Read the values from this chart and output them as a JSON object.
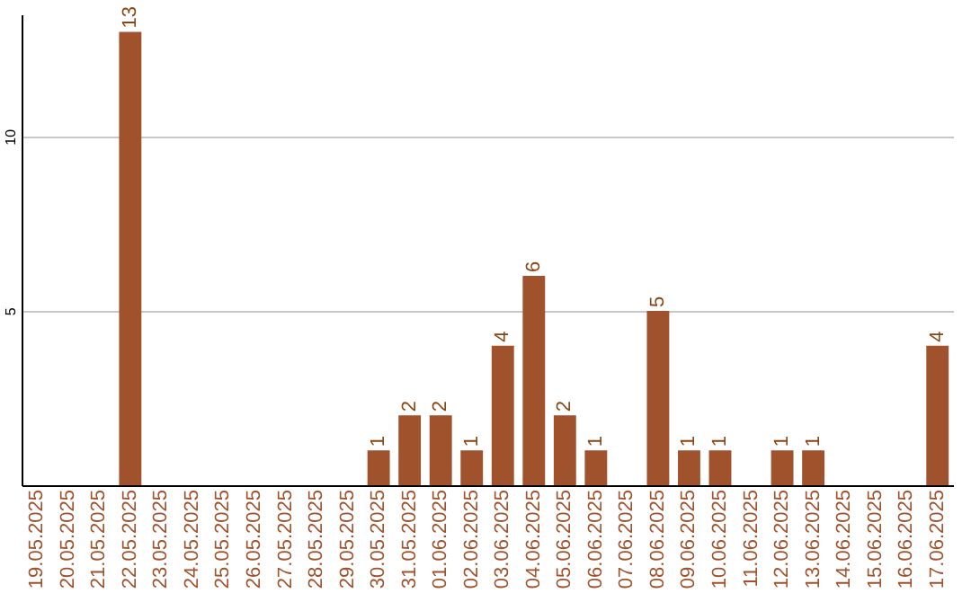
{
  "chart_data": {
    "type": "bar",
    "categories": [
      "19.05.2025",
      "20.05.2025",
      "21.05.2025",
      "22.05.2025",
      "23.05.2025",
      "24.05.2025",
      "25.05.2025",
      "26.05.2025",
      "27.05.2025",
      "28.05.2025",
      "29.05.2025",
      "30.05.2025",
      "31.05.2025",
      "01.06.2025",
      "02.06.2025",
      "03.06.2025",
      "04.06.2025",
      "05.06.2025",
      "06.06.2025",
      "07.06.2025",
      "08.06.2025",
      "09.06.2025",
      "10.06.2025",
      "11.06.2025",
      "12.06.2025",
      "13.06.2025",
      "14.06.2025",
      "15.06.2025",
      "16.06.2025",
      "17.06.2025"
    ],
    "values": [
      0,
      0,
      0,
      13,
      0,
      0,
      0,
      0,
      0,
      0,
      0,
      1,
      2,
      2,
      1,
      4,
      6,
      2,
      1,
      0,
      5,
      1,
      1,
      0,
      1,
      1,
      0,
      0,
      0,
      4
    ],
    "value_labels": [
      null,
      null,
      null,
      "13",
      null,
      null,
      null,
      null,
      null,
      null,
      null,
      "1",
      "2",
      "2",
      "1",
      "4",
      "6",
      "2",
      "1",
      null,
      "5",
      "1",
      "1",
      null,
      "1",
      "1",
      null,
      null,
      null,
      "4"
    ],
    "color": "#a0522d",
    "ylim": [
      0,
      13.5
    ],
    "yticks": [
      5,
      10
    ],
    "grid": "y"
  }
}
